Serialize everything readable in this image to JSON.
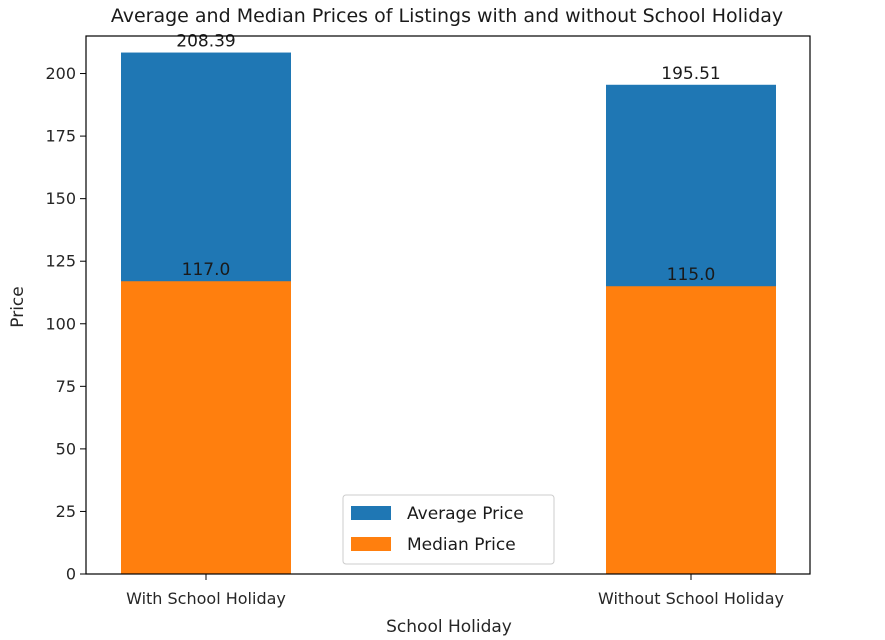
{
  "chart_data": {
    "type": "bar",
    "title": "Average and Median Prices of Listings with and without School Holiday",
    "xlabel": "School Holiday",
    "ylabel": "Price",
    "categories": [
      "With School Holiday",
      "Without School Holiday"
    ],
    "ylim": [
      0,
      215
    ],
    "yticks": [
      0,
      25,
      50,
      75,
      100,
      125,
      150,
      175,
      200
    ],
    "grid": false,
    "legend_position": "lower-center",
    "series": [
      {
        "name": "Average Price",
        "color": "#1f77b4",
        "values": [
          208.39,
          195.51
        ],
        "labels": [
          "208.39",
          "195.51"
        ]
      },
      {
        "name": "Median Price",
        "color": "#ff7f0e",
        "values": [
          117.0,
          115.0
        ],
        "labels": [
          "117.0",
          "115.0"
        ]
      }
    ]
  }
}
